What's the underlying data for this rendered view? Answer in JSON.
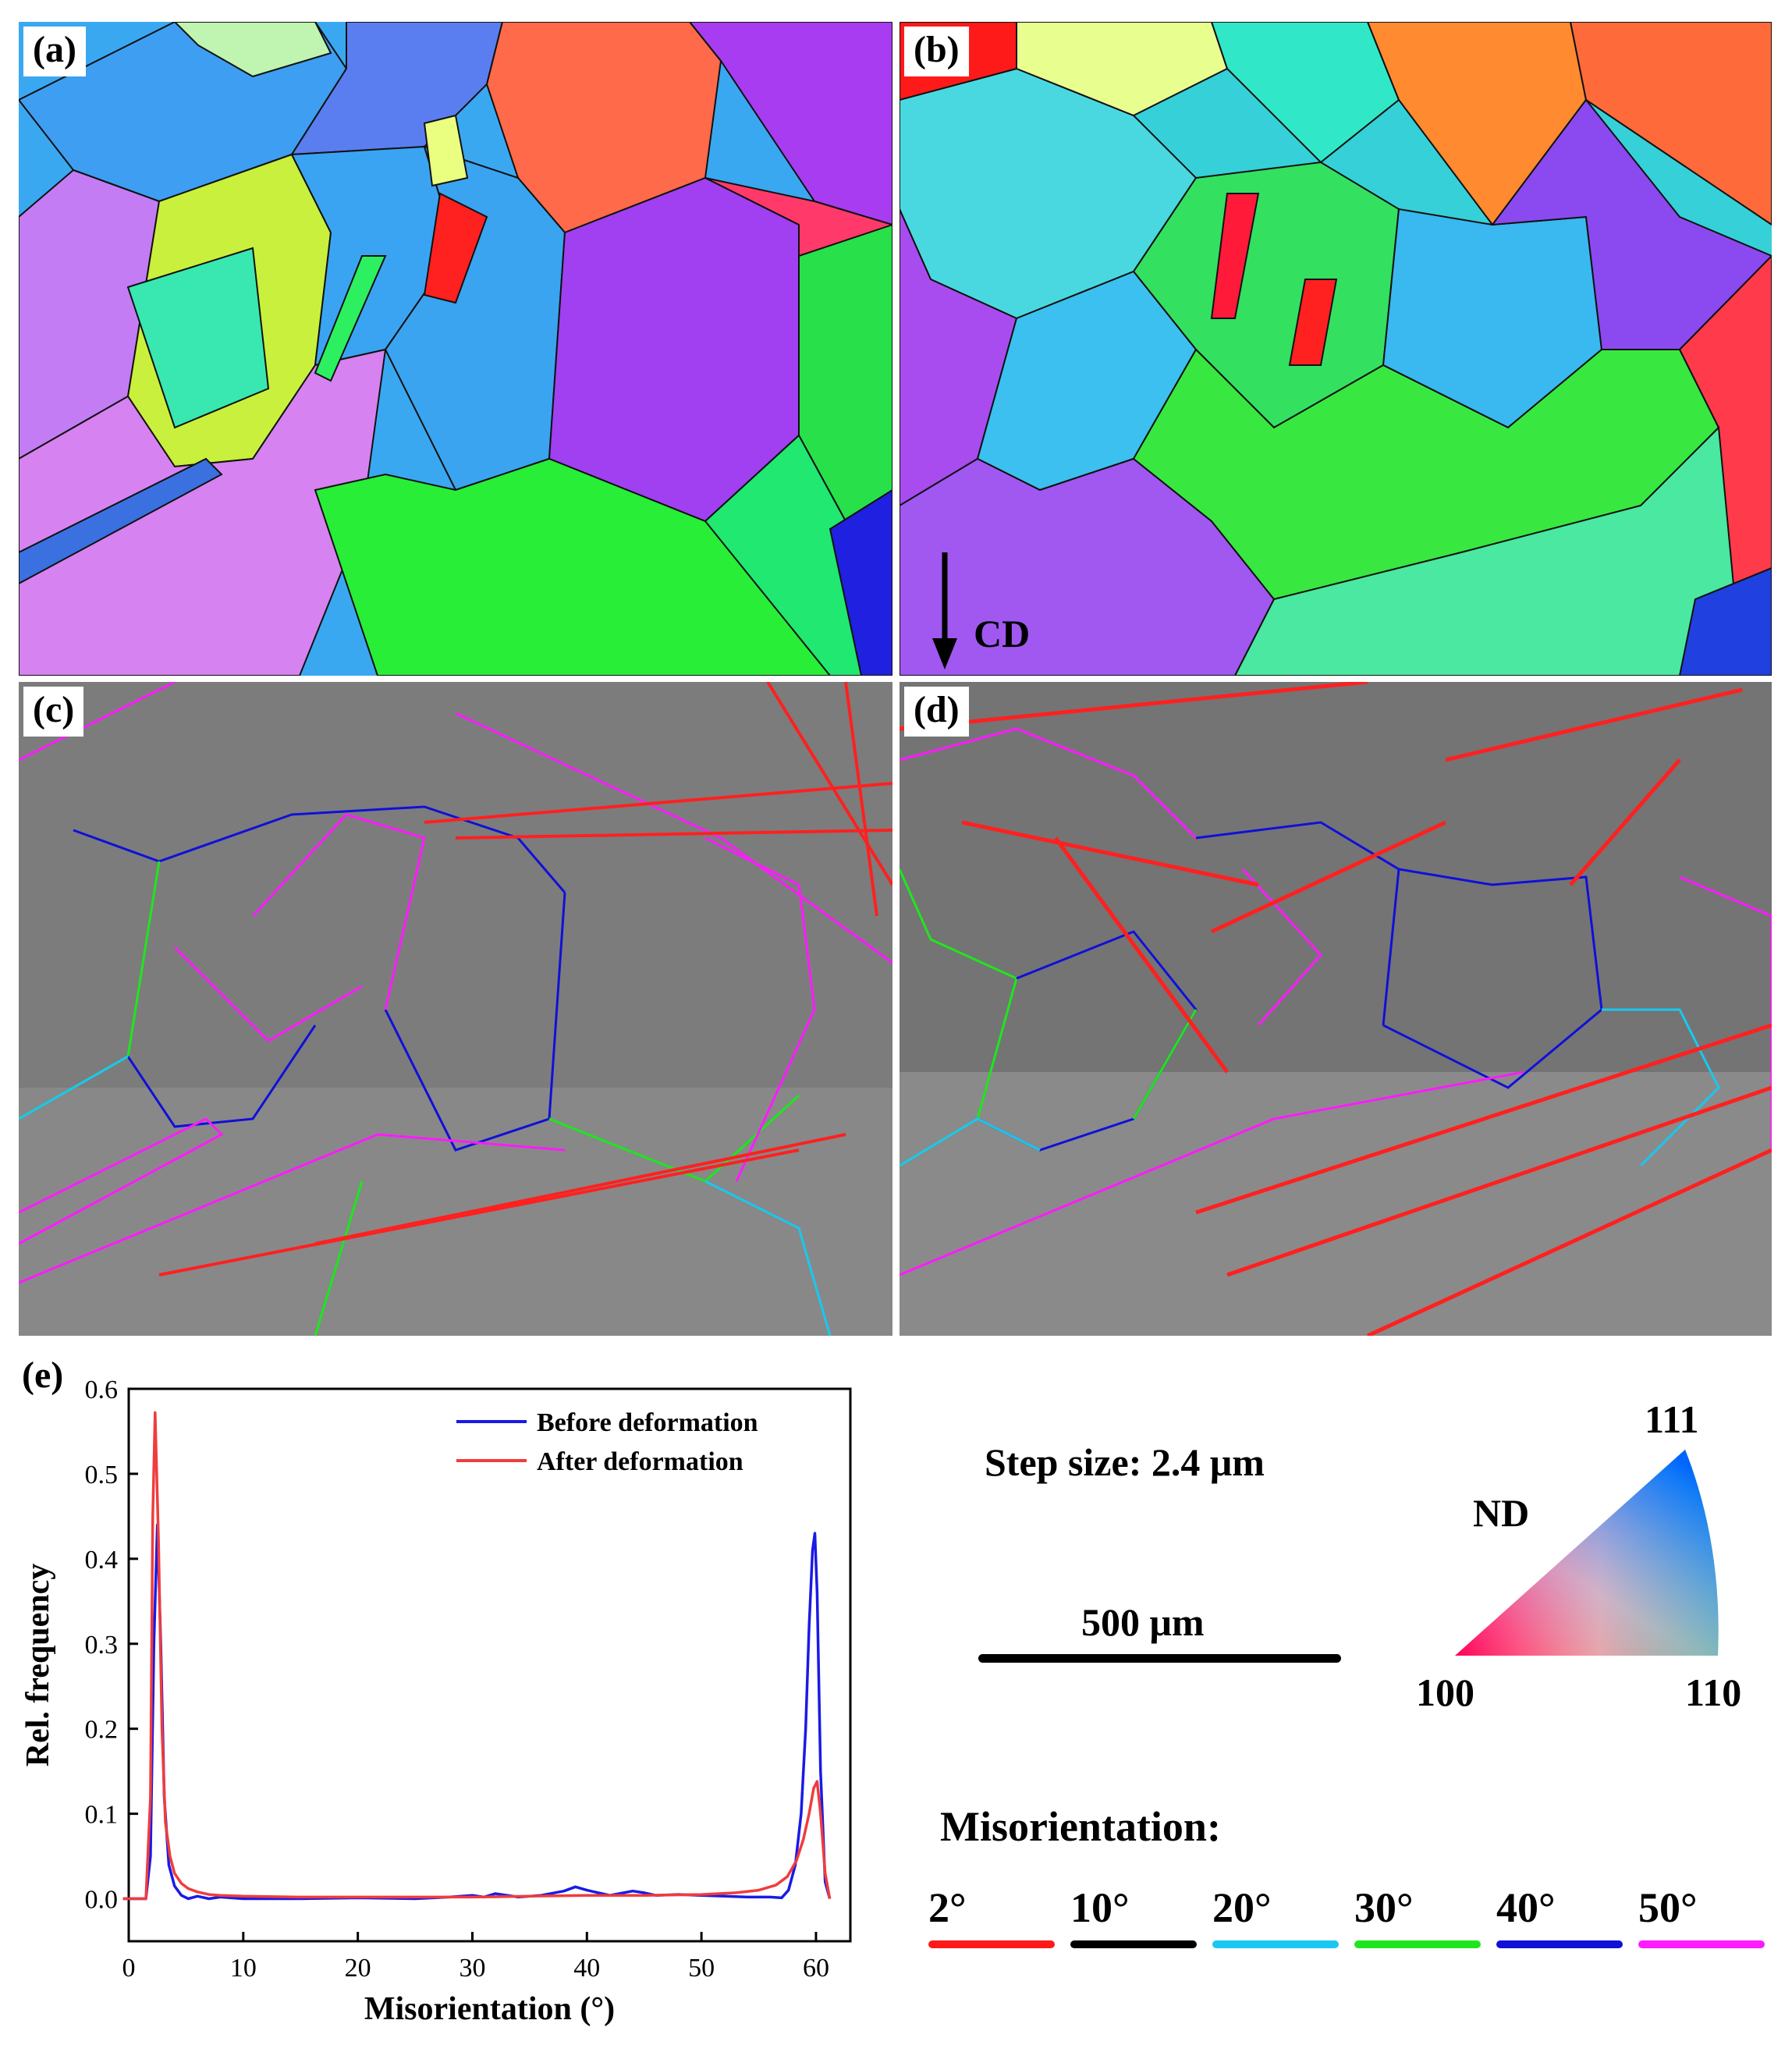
{
  "panels": {
    "a": "(a)",
    "b": "(b)",
    "c": "(c)",
    "d": "(d)",
    "e": "(e)"
  },
  "cd_label": "CD",
  "step_size": "Step size: 2.4 μm",
  "scale_bar_label": "500 μm",
  "ipf_key": {
    "axis": "ND",
    "corner_111": "111",
    "corner_100": "100",
    "corner_110": "110"
  },
  "misorientation_legend": {
    "title": "Misorientation:",
    "items": [
      {
        "label": "2°",
        "color": "#ff1a1a"
      },
      {
        "label": "10°",
        "color": "#000000"
      },
      {
        "label": "20°",
        "color": "#19c8f0"
      },
      {
        "label": "30°",
        "color": "#1ee61e"
      },
      {
        "label": "40°",
        "color": "#1010d8"
      },
      {
        "label": "50°",
        "color": "#ff1aff"
      }
    ]
  },
  "chart_data": {
    "type": "line",
    "xlabel": "Misorientation (°)",
    "ylabel": "Rel. frequency",
    "xlim": [
      0,
      63
    ],
    "ylim": [
      -0.05,
      0.6
    ],
    "xticks": [
      0,
      10,
      20,
      30,
      40,
      50,
      60
    ],
    "yticks": [
      0.0,
      0.1,
      0.2,
      0.3,
      0.4,
      0.5,
      0.6
    ],
    "series": [
      {
        "name": "Before deformation",
        "color": "#1a1ae6",
        "x": [
          -0.5,
          1.5,
          1.9,
          2.2,
          2.5,
          2.8,
          3.1,
          3.5,
          4,
          4.6,
          5.2,
          6,
          7,
          8,
          10,
          15,
          20,
          25,
          28,
          30,
          31,
          32,
          34,
          36,
          38,
          39,
          40,
          42,
          44,
          45,
          46,
          48,
          50,
          52,
          54,
          56,
          57,
          57.6,
          58.2,
          58.7,
          59.1,
          59.4,
          59.7,
          59.9,
          60.1,
          60.4,
          60.8,
          61.2
        ],
        "y": [
          0.0,
          0.0,
          0.05,
          0.3,
          0.44,
          0.3,
          0.12,
          0.04,
          0.015,
          0.004,
          0.0,
          0.003,
          0.0,
          0.002,
          0.0,
          0.0,
          0.001,
          0.0,
          0.002,
          0.004,
          0.002,
          0.006,
          0.002,
          0.004,
          0.009,
          0.014,
          0.01,
          0.004,
          0.009,
          0.007,
          0.004,
          0.005,
          0.004,
          0.003,
          0.002,
          0.002,
          0.001,
          0.01,
          0.04,
          0.1,
          0.2,
          0.32,
          0.41,
          0.43,
          0.36,
          0.15,
          0.02,
          0.0
        ]
      },
      {
        "name": "After deformation",
        "color": "#f03c3c",
        "x": [
          -0.5,
          1.5,
          1.9,
          2.1,
          2.3,
          2.6,
          2.9,
          3.2,
          3.6,
          4,
          4.6,
          5.2,
          6,
          7,
          8,
          10,
          15,
          20,
          25,
          30,
          35,
          40,
          45,
          50,
          53,
          55,
          56.5,
          57.5,
          58.3,
          58.9,
          59.4,
          59.8,
          60.1,
          60.4,
          60.8,
          61.2
        ],
        "y": [
          0.0,
          0.0,
          0.12,
          0.45,
          0.572,
          0.42,
          0.2,
          0.09,
          0.05,
          0.03,
          0.018,
          0.012,
          0.008,
          0.005,
          0.004,
          0.003,
          0.002,
          0.002,
          0.002,
          0.002,
          0.003,
          0.004,
          0.004,
          0.005,
          0.007,
          0.01,
          0.016,
          0.026,
          0.045,
          0.07,
          0.1,
          0.13,
          0.138,
          0.1,
          0.03,
          0.0
        ]
      }
    ]
  }
}
